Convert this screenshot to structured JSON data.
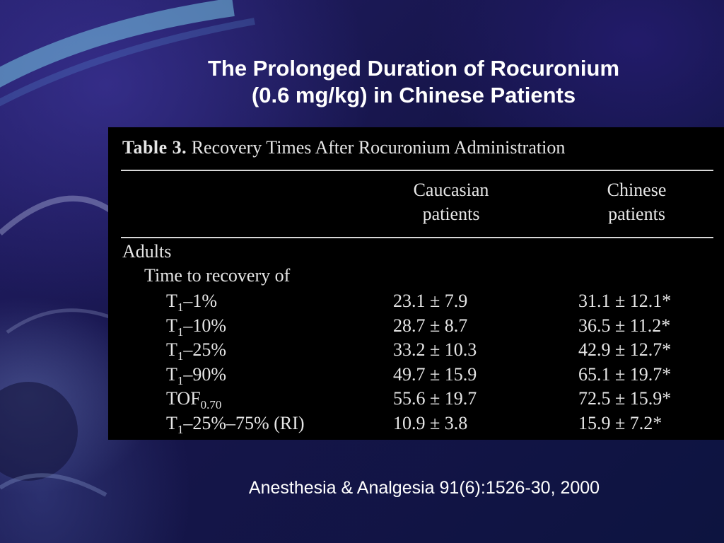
{
  "slide": {
    "title_line1": "The Prolonged Duration of Rocuronium",
    "title_line2": "(0.6 mg/kg) in Chinese Patients",
    "citation": "Anesthesia & Analgesia 91(6):1526-30, 2000"
  },
  "table": {
    "caption_number": "Table 3.",
    "caption_text": "Recovery Times After Rocuronium Administration",
    "col1_head_line1": "Caucasian",
    "col1_head_line2": "patients",
    "col2_head_line1": "Chinese",
    "col2_head_line2": "patients",
    "group_label": "Adults",
    "subgroup_label": "Time to recovery of",
    "rows": [
      {
        "label_main": "T",
        "label_sub": "1",
        "label_rest": "–1%",
        "caucasian": "23.1 ± 7.9",
        "chinese": "31.1 ± 12.1*"
      },
      {
        "label_main": "T",
        "label_sub": "1",
        "label_rest": "–10%",
        "caucasian": "28.7 ± 8.7",
        "chinese": "36.5 ± 11.2*"
      },
      {
        "label_main": "T",
        "label_sub": "1",
        "label_rest": "–25%",
        "caucasian": "33.2 ± 10.3",
        "chinese": "42.9 ± 12.7*"
      },
      {
        "label_main": "T",
        "label_sub": "1",
        "label_rest": "–90%",
        "caucasian": "49.7 ± 15.9",
        "chinese": "65.1 ± 19.7*"
      },
      {
        "label_main": "TOF",
        "label_sub": "0.70",
        "label_rest": "",
        "caucasian": "55.6 ± 19.7",
        "chinese": "72.5 ± 15.9*"
      },
      {
        "label_main": "T",
        "label_sub": "1",
        "label_rest": "–25%–75% (RI)",
        "caucasian": "10.9 ± 3.8",
        "chinese": "15.9 ± 7.2*"
      }
    ]
  }
}
